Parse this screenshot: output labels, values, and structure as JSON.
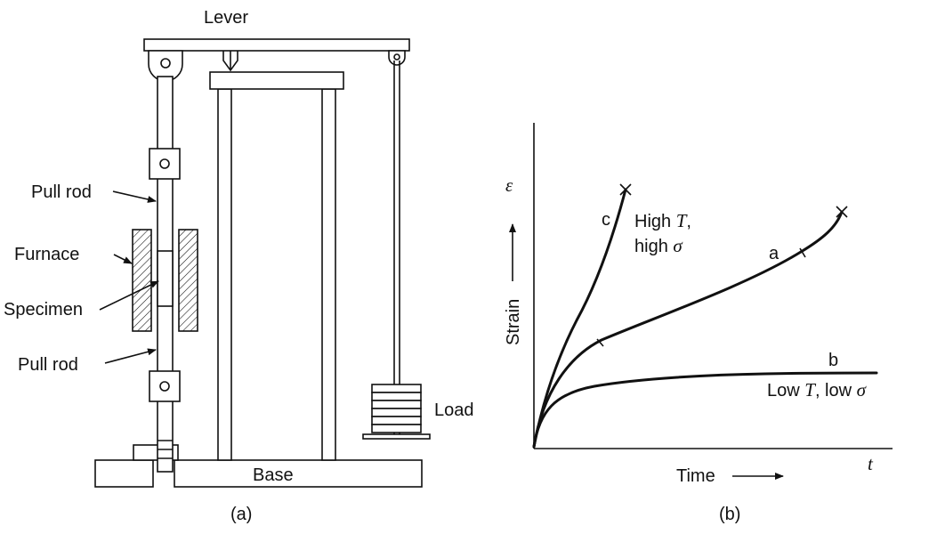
{
  "panel_a": {
    "caption": "(a)",
    "labels": {
      "lever": "Lever",
      "pull_rod_top": "Pull rod",
      "furnace": "Furnace",
      "specimen": "Specimen",
      "pull_rod_bottom": "Pull rod",
      "load": "Load",
      "base": "Base"
    }
  },
  "panel_b": {
    "caption": "(b)",
    "y_axis": {
      "symbol": "ε",
      "label": "Strain"
    },
    "x_axis": {
      "symbol": "t",
      "label": "Time"
    },
    "curves": {
      "a": {
        "label": "a"
      },
      "b": {
        "label": "b",
        "condition_prefix": "Low ",
        "condition_T": "T",
        "condition_mid": ", low ",
        "condition_sigma": "σ"
      },
      "c": {
        "label": "c",
        "line1_prefix": "High ",
        "line1_T": "T",
        "line1_suffix": ",",
        "line2_prefix": "high ",
        "line2_sigma": "σ"
      }
    }
  }
}
